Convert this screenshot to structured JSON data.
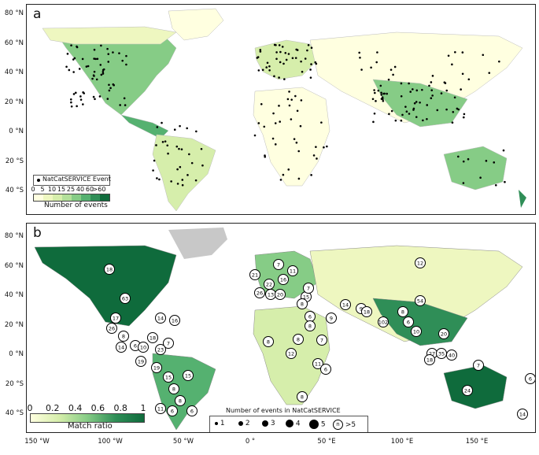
{
  "panel_a": {
    "letter": "a",
    "legend_event": "NatCatSERVICE Event",
    "colorbar_ticks": [
      "0",
      "5",
      "10",
      "15",
      "25",
      "40",
      "60",
      ">60"
    ],
    "colorbar_label": "Number of events",
    "colors": [
      "#ffffe0",
      "#eef7c0",
      "#d6eeab",
      "#b3e09a",
      "#86cc86",
      "#55b170",
      "#2f8e57",
      "#0f6b3c"
    ]
  },
  "panel_b": {
    "letter": "b",
    "colorbar_ticks": [
      "0",
      "0.2",
      "0.4",
      "0.6",
      "0.8",
      "1"
    ],
    "colorbar_label": "Match ratio",
    "size_legend_title": "Number of events in NatCatSERVICE",
    "size_legend_items": [
      "1",
      "2",
      "3",
      "4",
      "5",
      ">5"
    ],
    "size_legend_symbol": "n",
    "labels": [
      "18",
      "63",
      "17",
      "26",
      "8",
      "14",
      "6",
      "10",
      "7",
      "18",
      "14",
      "16",
      "23",
      "19",
      "19",
      "15",
      "15",
      "8",
      "8",
      "11",
      "6",
      "6",
      "21",
      "7",
      "11",
      "16",
      "22",
      "26",
      "13",
      "20",
      "15",
      "7",
      "8",
      "14",
      "9",
      "18",
      "6",
      "8",
      "9",
      "102",
      "8",
      "6",
      "10",
      "8",
      "8",
      "7",
      "12",
      "11",
      "6",
      "8",
      "12",
      "54",
      "27",
      "18",
      "35",
      "40",
      "20",
      "7",
      "24",
      "6",
      "14"
    ]
  },
  "axes": {
    "lat_labels": [
      "80 °N",
      "60 °N",
      "40 °N",
      "20 °N",
      "0 °N",
      "20 °S",
      "40 °S"
    ],
    "lon_labels": [
      "150 °W",
      "100 °W",
      "50 °W",
      "0 °",
      "50 °E",
      "100 °E",
      "150 °E"
    ]
  }
}
